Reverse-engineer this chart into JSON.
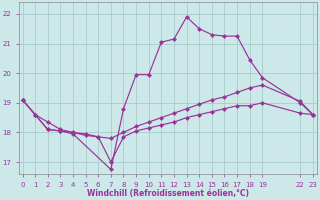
{
  "bg_color": "#cce8e8",
  "grid_color": "#aacccc",
  "line_color": "#993399",
  "markersize": 2.5,
  "linewidth": 0.85,
  "xlim": [
    -0.3,
    23.3
  ],
  "ylim": [
    16.6,
    22.4
  ],
  "yticks": [
    17,
    18,
    19,
    20,
    21,
    22
  ],
  "xtick_pos": [
    0,
    1,
    2,
    3,
    4,
    5,
    6,
    7,
    8,
    9,
    10,
    11,
    12,
    13,
    14,
    15,
    16,
    17,
    18,
    19,
    22,
    23
  ],
  "xtick_labels": [
    "0",
    "1",
    "2",
    "3",
    "4",
    "5",
    "6",
    "7",
    "8",
    "9",
    "10",
    "11",
    "12",
    "13",
    "14",
    "15",
    "16",
    "17",
    "18",
    "19",
    "22",
    "23"
  ],
  "xlabel": "Windchill (Refroidissement éolien,°C)",
  "line1_x": [
    0,
    1,
    2,
    3,
    4,
    7,
    8,
    9,
    10,
    11,
    12,
    13,
    14,
    15,
    16,
    17,
    18,
    19,
    22,
    23
  ],
  "line1_y": [
    19.1,
    18.6,
    18.1,
    18.05,
    17.95,
    16.75,
    18.8,
    19.95,
    19.95,
    21.05,
    21.15,
    21.9,
    21.5,
    21.3,
    21.25,
    21.25,
    20.45,
    19.85,
    19.0,
    18.6
  ],
  "line2_x": [
    0,
    1,
    2,
    3,
    5,
    6,
    7,
    8,
    9,
    10,
    11,
    12,
    13,
    14,
    15,
    16,
    17,
    18,
    19,
    22,
    23
  ],
  "line2_y": [
    19.1,
    18.6,
    18.1,
    18.05,
    17.95,
    17.85,
    17.0,
    17.85,
    18.05,
    18.15,
    18.25,
    18.35,
    18.5,
    18.6,
    18.7,
    18.8,
    18.9,
    18.9,
    19.0,
    18.65,
    18.6
  ],
  "line3_x": [
    0,
    1,
    2,
    3,
    4,
    5,
    6,
    7,
    8,
    9,
    10,
    11,
    12,
    13,
    14,
    15,
    16,
    17,
    18,
    19,
    22,
    23
  ],
  "line3_y": [
    19.1,
    18.6,
    18.35,
    18.1,
    18.0,
    17.9,
    17.85,
    17.8,
    18.0,
    18.2,
    18.35,
    18.5,
    18.65,
    18.8,
    18.95,
    19.1,
    19.2,
    19.35,
    19.5,
    19.6,
    19.05,
    18.6
  ]
}
